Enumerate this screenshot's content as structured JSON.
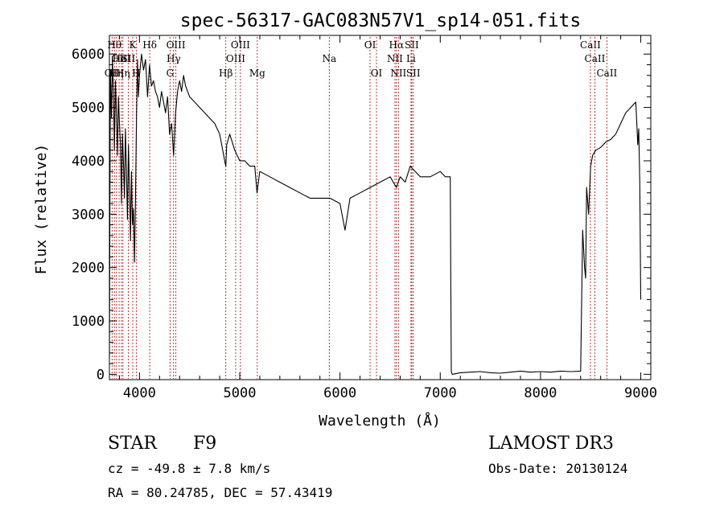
{
  "chart_data": {
    "type": "line",
    "title": "spec-56317-GAC083N57V1_sp14-051.fits",
    "xlabel": "Wavelength (Å)",
    "ylabel": "Flux (relative)",
    "xlim": [
      3700,
      9100
    ],
    "ylim": [
      -100,
      6350
    ],
    "x_ticks": [
      4000,
      5000,
      6000,
      7000,
      8000,
      9000
    ],
    "y_ticks": [
      0,
      1000,
      2000,
      3000,
      4000,
      5000,
      6000
    ],
    "grid": false,
    "series": [
      {
        "x": [
          3700,
          3710,
          3720,
          3730,
          3740,
          3750,
          3760,
          3770,
          3780,
          3790,
          3800,
          3810,
          3820,
          3830,
          3840,
          3850,
          3860,
          3870,
          3880,
          3890,
          3900,
          3910,
          3920,
          3930,
          3940,
          3950,
          3960,
          3970,
          3980,
          3990,
          4000,
          4020,
          4040,
          4060,
          4080,
          4100,
          4120,
          4140,
          4160,
          4180,
          4200,
          4220,
          4240,
          4260,
          4280,
          4300,
          4320,
          4340,
          4360,
          4380,
          4400,
          4420,
          4440,
          4460,
          4480,
          4500,
          4550,
          4600,
          4650,
          4700,
          4750,
          4800,
          4850,
          4861,
          4870,
          4900,
          4950,
          5000,
          5050,
          5100,
          5150,
          5172,
          5200,
          5300,
          5400,
          5500,
          5600,
          5700,
          5800,
          5900,
          6000,
          6050,
          6100,
          6200,
          6300,
          6400,
          6500,
          6563,
          6600,
          6650,
          6700,
          6800,
          6900,
          7000,
          7050,
          7100,
          7110,
          7120,
          7200,
          7300,
          7400,
          7500,
          7600,
          7700,
          7800,
          7900,
          8000,
          8100,
          8200,
          8300,
          8400,
          8420,
          8440,
          8450,
          8460,
          8480,
          8500,
          8520,
          8550,
          8600,
          8650,
          8700,
          8750,
          8800,
          8850,
          8900,
          8950,
          8960,
          8970,
          8980,
          8990,
          9000
        ],
        "y": [
          300,
          5700,
          4800,
          5900,
          5300,
          4200,
          5500,
          4900,
          4100,
          5200,
          4700,
          4300,
          3200,
          4500,
          4000,
          3300,
          4600,
          3800,
          2900,
          4300,
          3500,
          2500,
          3800,
          2800,
          3100,
          2100,
          3300,
          4800,
          5900,
          5200,
          5600,
          6000,
          5700,
          5900,
          5200,
          5800,
          5400,
          5500,
          5300,
          5200,
          5000,
          5300,
          5100,
          4900,
          5200,
          4500,
          4700,
          4100,
          4900,
          5300,
          5500,
          5300,
          5600,
          5400,
          5300,
          5200,
          5100,
          5000,
          4900,
          4800,
          4700,
          4500,
          4000,
          3900,
          4300,
          4500,
          4200,
          4000,
          4000,
          3900,
          3900,
          3400,
          3800,
          3700,
          3600,
          3500,
          3400,
          3300,
          3300,
          3300,
          3200,
          2700,
          3300,
          3400,
          3500,
          3600,
          3700,
          3500,
          3700,
          3600,
          3900,
          3700,
          3700,
          3800,
          3700,
          3700,
          50,
          0,
          30,
          40,
          50,
          30,
          20,
          40,
          60,
          40,
          50,
          40,
          60,
          50,
          60,
          2700,
          2000,
          1800,
          3500,
          3000,
          3900,
          4100,
          4200,
          4250,
          4350,
          4400,
          4500,
          4700,
          4900,
          5000,
          5100,
          4700,
          4300,
          4600,
          3600,
          1400
        ]
      }
    ],
    "spectral_lines": [
      {
        "wavelength": 3727,
        "label": "OII",
        "row": 3
      },
      {
        "wavelength": 3750,
        "label": "Hθ",
        "row": 1
      },
      {
        "wavelength": 3770,
        "label": "Hη",
        "row": 3
      },
      {
        "wavelength": 3797,
        "label": "OII",
        "row": 2
      },
      {
        "wavelength": 3820,
        "label": "HeI",
        "row": 2
      },
      {
        "wavelength": 3835,
        "label": "Hη",
        "row": 3
      },
      {
        "wavelength": 3889,
        "label": "SII",
        "row": 2
      },
      {
        "wavelength": 3933,
        "label": "K",
        "row": 1
      },
      {
        "wavelength": 3968,
        "label": "H",
        "row": 3
      },
      {
        "wavelength": 4102,
        "label": "Hδ",
        "row": 1
      },
      {
        "wavelength": 4305,
        "label": "G",
        "row": 3
      },
      {
        "wavelength": 4340,
        "label": "Hγ",
        "row": 2
      },
      {
        "wavelength": 4363,
        "label": "OIII",
        "row": 1
      },
      {
        "wavelength": 4861,
        "label": "Hβ",
        "row": 3
      },
      {
        "wavelength": 4959,
        "label": "OIII",
        "row": 2
      },
      {
        "wavelength": 5007,
        "label": "OIII",
        "row": 1
      },
      {
        "wavelength": 5175,
        "label": "Mg",
        "row": 3
      },
      {
        "wavelength": 5893,
        "label": "Na",
        "row": 2
      },
      {
        "wavelength": 6300,
        "label": "OI",
        "row": 1
      },
      {
        "wavelength": 6364,
        "label": "OI",
        "row": 3
      },
      {
        "wavelength": 6548,
        "label": "NII",
        "row": 2
      },
      {
        "wavelength": 6563,
        "label": "Hα",
        "row": 1
      },
      {
        "wavelength": 6583,
        "label": "NII",
        "row": 3
      },
      {
        "wavelength": 6708,
        "label": "Li",
        "row": 2
      },
      {
        "wavelength": 6716,
        "label": "SII",
        "row": 1
      },
      {
        "wavelength": 6731,
        "label": "SII",
        "row": 3
      },
      {
        "wavelength": 8498,
        "label": "CaII",
        "row": 1
      },
      {
        "wavelength": 8542,
        "label": "CaII",
        "row": 2
      },
      {
        "wavelength": 8662,
        "label": "CaII",
        "row": 3
      }
    ],
    "colors": {
      "spectrum": "#000000",
      "line_marker": "#b22222",
      "frame": "#000000"
    }
  },
  "info": {
    "object_type": "STAR",
    "subclass": "F9",
    "survey": "LAMOST DR3",
    "cz": "cz = -49.8 ± 7.8 km/s",
    "obs_date": "Obs-Date: 20130124",
    "radec": "RA =  80.24785, DEC =  57.43419"
  }
}
